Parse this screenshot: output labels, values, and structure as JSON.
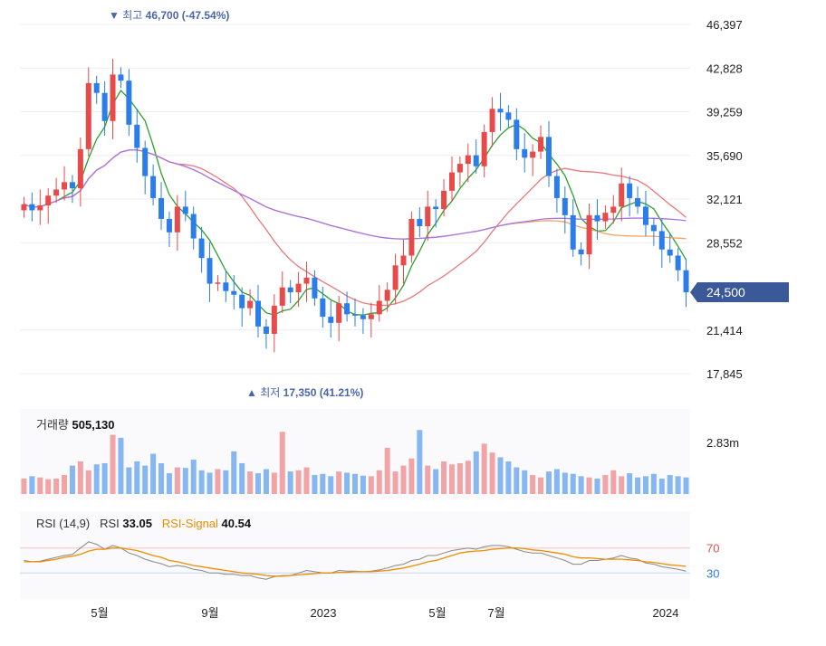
{
  "chart_data": {
    "type": "candlestick",
    "price_axis": {
      "ticks": [
        "46,397",
        "42,828",
        "39,259",
        "35,690",
        "32,121",
        "28,552",
        "21,414",
        "17,845"
      ],
      "ylim": [
        17845,
        46397
      ]
    },
    "current_price": "24,500",
    "max_marker": {
      "symbol": "▼",
      "label": "최고",
      "value": "46,700 (-47.54%)"
    },
    "min_marker": {
      "symbol": "▲",
      "label": "최저",
      "value": "17,350 (41.21%)"
    },
    "x_labels": [
      "5월",
      "9월",
      "2023",
      "5월",
      "7월",
      "2024"
    ],
    "candles_close": [
      31700,
      31200,
      31600,
      32400,
      32900,
      33500,
      33000,
      36200,
      41600,
      40800,
      38500,
      42300,
      41800,
      38200,
      36300,
      34000,
      32200,
      30500,
      29400,
      31500,
      30900,
      28900,
      27300,
      25200,
      25300,
      24600,
      24300,
      23200,
      23800,
      21700,
      21100,
      23400,
      24900,
      24500,
      25200,
      25700,
      24000,
      22500,
      22000,
      23600,
      22700,
      22600,
      22300,
      22700,
      23800,
      24700,
      26700,
      27500,
      30500,
      29900,
      31500,
      31300,
      32800,
      34300,
      35000,
      35700,
      34800,
      37600,
      39500,
      39200,
      38600,
      36200,
      35500,
      36000,
      37200,
      34000,
      32200,
      30800,
      28000,
      27600,
      30800,
      30300,
      31000,
      31500,
      33400,
      32200,
      31500,
      30000,
      29500,
      28000,
      27500,
      26300,
      24500
    ],
    "volume": {
      "label": "거래량",
      "value": "505,130",
      "axis_label": "2.83m",
      "values": [
        0.26,
        0.3,
        0.28,
        0.25,
        0.26,
        0.32,
        0.48,
        0.55,
        0.4,
        0.5,
        0.52,
        1.0,
        0.95,
        0.45,
        0.55,
        0.48,
        0.68,
        0.52,
        0.35,
        0.45,
        0.44,
        0.58,
        0.4,
        0.36,
        0.42,
        0.4,
        0.72,
        0.52,
        0.38,
        0.35,
        0.42,
        0.36,
        1.05,
        0.38,
        0.4,
        0.45,
        0.32,
        0.34,
        0.3,
        0.38,
        0.36,
        0.34,
        0.31,
        0.3,
        0.4,
        0.78,
        0.38,
        0.48,
        0.6,
        1.08,
        0.48,
        0.42,
        0.55,
        0.5,
        0.52,
        0.56,
        0.72,
        0.85,
        0.7,
        0.62,
        0.55,
        0.45,
        0.4,
        0.32,
        0.28,
        0.38,
        0.42,
        0.36,
        0.34,
        0.3,
        0.28,
        0.26,
        0.32,
        0.4,
        0.3,
        0.35,
        0.28,
        0.3,
        0.34,
        0.26,
        0.32,
        0.3,
        0.28
      ]
    },
    "rsi": {
      "label": "RSI (14,9)",
      "rsi_label": "RSI",
      "rsi_value": "33.05",
      "signal_label": "RSI-Signal",
      "signal_value": "40.54",
      "levels": [
        "70",
        "30"
      ],
      "values": [
        50,
        48,
        49,
        52,
        55,
        58,
        60,
        70,
        80,
        76,
        68,
        74,
        70,
        62,
        58,
        52,
        48,
        45,
        40,
        42,
        40,
        36,
        34,
        30,
        30,
        28,
        28,
        26,
        26,
        22,
        20,
        24,
        26,
        26,
        30,
        34,
        32,
        30,
        30,
        34,
        33,
        33,
        32,
        33,
        35,
        38,
        42,
        44,
        50,
        52,
        58,
        58,
        62,
        66,
        68,
        70,
        68,
        72,
        74,
        74,
        72,
        68,
        64,
        62,
        62,
        58,
        54,
        50,
        44,
        44,
        50,
        50,
        52,
        54,
        58,
        54,
        52,
        46,
        44,
        40,
        38,
        36,
        33
      ],
      "signal": [
        48,
        48,
        48,
        50,
        52,
        55,
        57,
        60,
        65,
        68,
        68,
        70,
        70,
        68,
        66,
        62,
        58,
        55,
        50,
        48,
        45,
        42,
        40,
        38,
        36,
        34,
        32,
        30,
        29,
        28,
        26,
        25,
        25,
        26,
        27,
        28,
        29,
        30,
        30,
        31,
        31,
        32,
        32,
        32,
        33,
        34,
        36,
        38,
        41,
        44,
        48,
        50,
        54,
        58,
        62,
        64,
        65,
        66,
        68,
        69,
        70,
        70,
        69,
        67,
        66,
        64,
        62,
        60,
        56,
        54,
        54,
        53,
        52,
        52,
        52,
        51,
        50,
        48,
        47,
        45,
        43,
        42,
        40.54
      ]
    },
    "series": [
      {
        "name": "",
        "color": "#2ca02c"
      },
      {
        "name": "",
        "color": "#e8787a"
      },
      {
        "name": "",
        "color": "#f3a361"
      },
      {
        "name": "",
        "color": "#a875e6"
      }
    ]
  },
  "colors": {
    "up": "#e84a4a",
    "down": "#2b7de9",
    "grid": "#eeeeee",
    "axis_text": "#222222"
  }
}
